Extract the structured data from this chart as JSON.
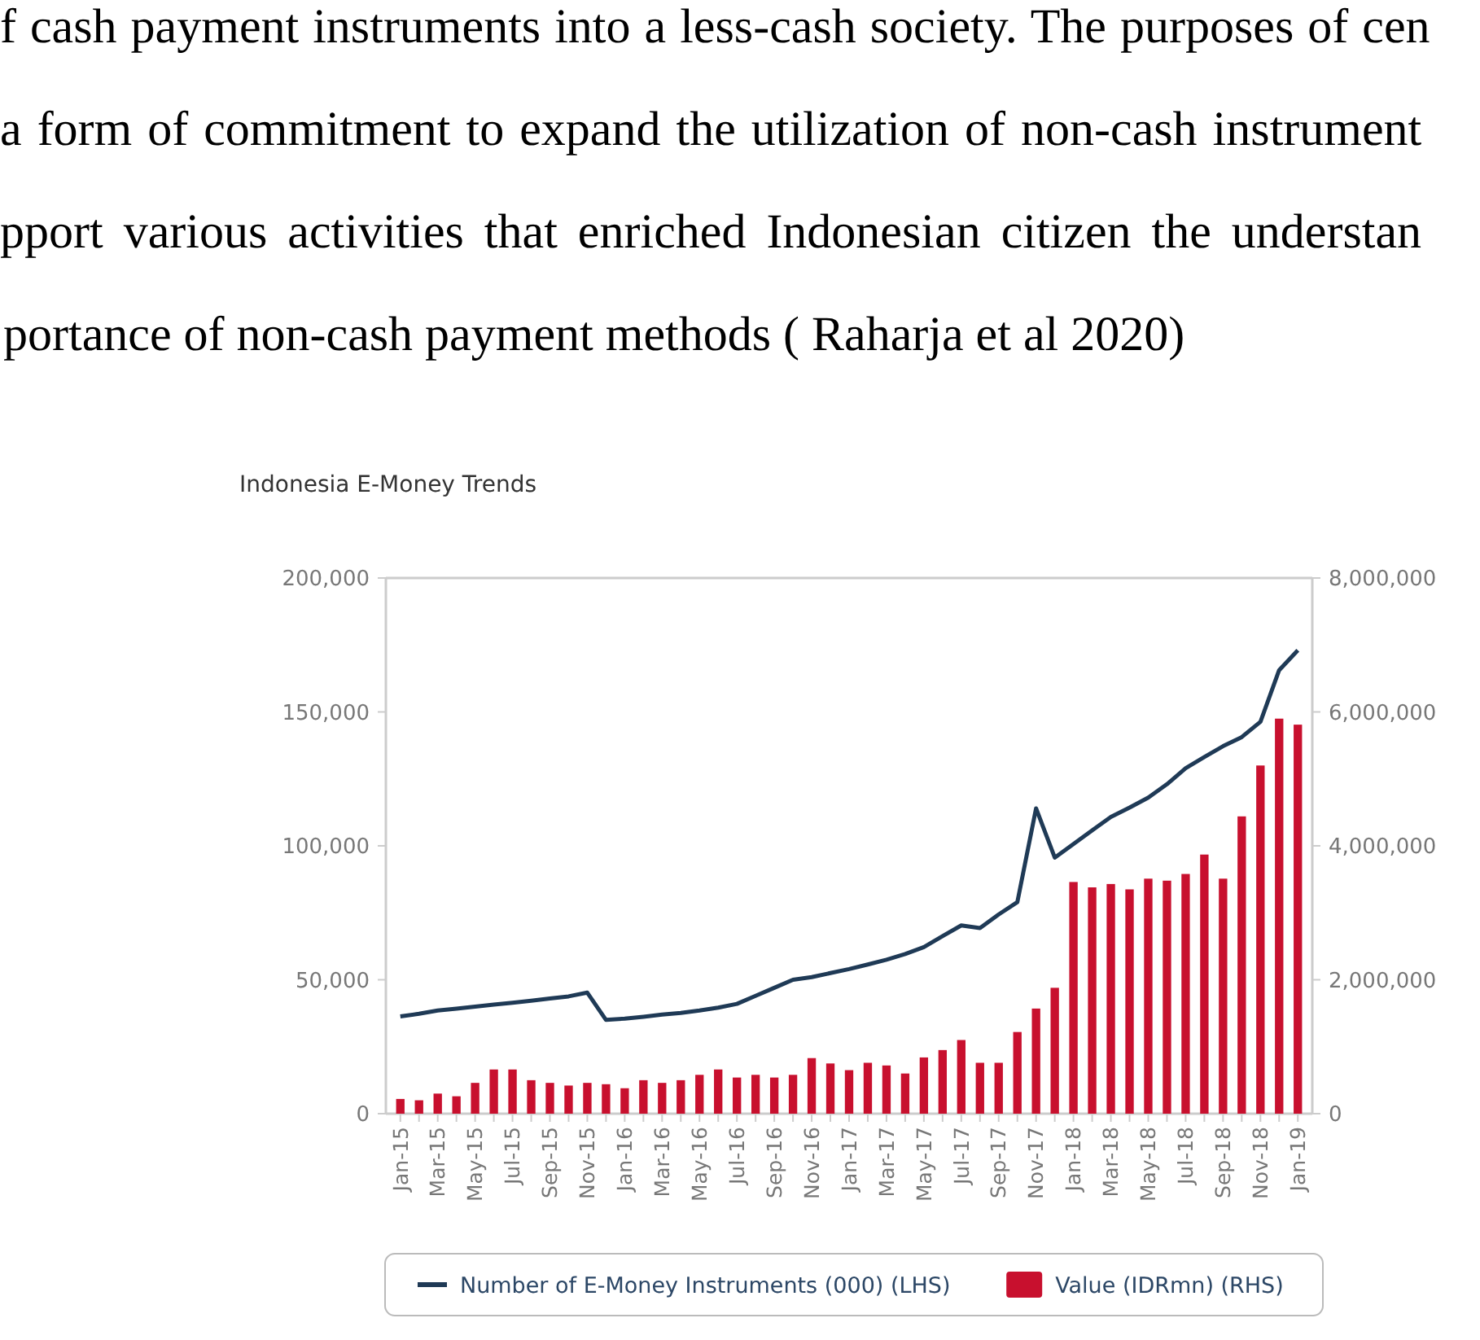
{
  "chart_data": {
    "type": "bar",
    "title": "Indonesia E-Money Trends",
    "annotations": [
      "f cash payment instruments into a less-cash society. The purposes of cen",
      "a form of commitment to expand the utilization of non-cash instrument",
      "pport various activities that enriched Indonesian citizen the understan",
      "portance of non-cash payment methods ( Raharja et al 2020)"
    ],
    "categories": [
      "Jan-15",
      null,
      "Mar-15",
      null,
      "May-15",
      null,
      "Jul-15",
      null,
      "Sep-15",
      null,
      "Nov-15",
      null,
      "Jan-16",
      null,
      "Mar-16",
      null,
      "May-16",
      null,
      "Jul-16",
      null,
      "Sep-16",
      null,
      "Nov-16",
      null,
      "Jan-17",
      null,
      "Mar-17",
      null,
      "May-17",
      null,
      "Jul-17",
      null,
      "Sep-17",
      null,
      "Nov-17",
      null,
      "Jan-18",
      null,
      "Mar-18",
      null,
      "May-18",
      null,
      "Jul-18",
      null,
      "Sep-18",
      null,
      "Nov-18",
      null,
      "Jan-19"
    ],
    "series": [
      {
        "name": "Number of E-Money Instruments (000) (LHS)",
        "type": "line",
        "color": "#1f3a56",
        "values": [
          36300,
          37300,
          38500,
          39200,
          40000,
          40700,
          41400,
          42200,
          43000,
          43800,
          45200,
          35000,
          35500,
          36200,
          37000,
          37600,
          38500,
          39600,
          41000,
          44000,
          47000,
          50000,
          51000,
          52500,
          54000,
          55700,
          57500,
          59600,
          62200,
          66300,
          70300,
          69300,
          74400,
          79000,
          114000,
          95600,
          100700,
          105800,
          110800,
          114300,
          118000,
          123000,
          129000,
          133200,
          137200,
          140600,
          146300,
          165600,
          173000
        ]
      },
      {
        "name": "Value (IDRmn) (RHS)",
        "axis": "y2",
        "color": "#c8102e",
        "values": [
          220000,
          200000,
          300000,
          260000,
          460000,
          660000,
          660000,
          500000,
          460000,
          420000,
          460000,
          440000,
          380000,
          500000,
          460000,
          500000,
          580000,
          660000,
          540000,
          580000,
          540000,
          580000,
          830000,
          750000,
          650000,
          760000,
          720000,
          600000,
          840000,
          950000,
          1100000,
          760000,
          760000,
          1220000,
          1570000,
          1880000,
          3460000,
          3380000,
          3430000,
          3350000,
          3510000,
          3480000,
          3580000,
          3870000,
          3510000,
          4440000,
          5200000,
          5900000,
          5810000
        ]
      }
    ],
    "ylim": [
      0,
      200000
    ],
    "yticks": [
      {
        "value": 0,
        "label": "0"
      },
      {
        "value": 50000,
        "label": "50,000"
      },
      {
        "value": 100000,
        "label": "100,000"
      },
      {
        "value": 150000,
        "label": "150,000"
      },
      {
        "value": 200000,
        "label": "200,000"
      }
    ],
    "y2lim": [
      0,
      8000000
    ],
    "y2ticks": [
      {
        "value": 0,
        "label": "0"
      },
      {
        "value": 2000000,
        "label": "2,000,000"
      },
      {
        "value": 4000000,
        "label": "4,000,000"
      },
      {
        "value": 6000000,
        "label": "6,000,000"
      },
      {
        "value": 8000000,
        "label": "8,000,000"
      }
    ],
    "grid": false,
    "legend": "bottom",
    "marker": "none",
    "line_style": "solid"
  }
}
